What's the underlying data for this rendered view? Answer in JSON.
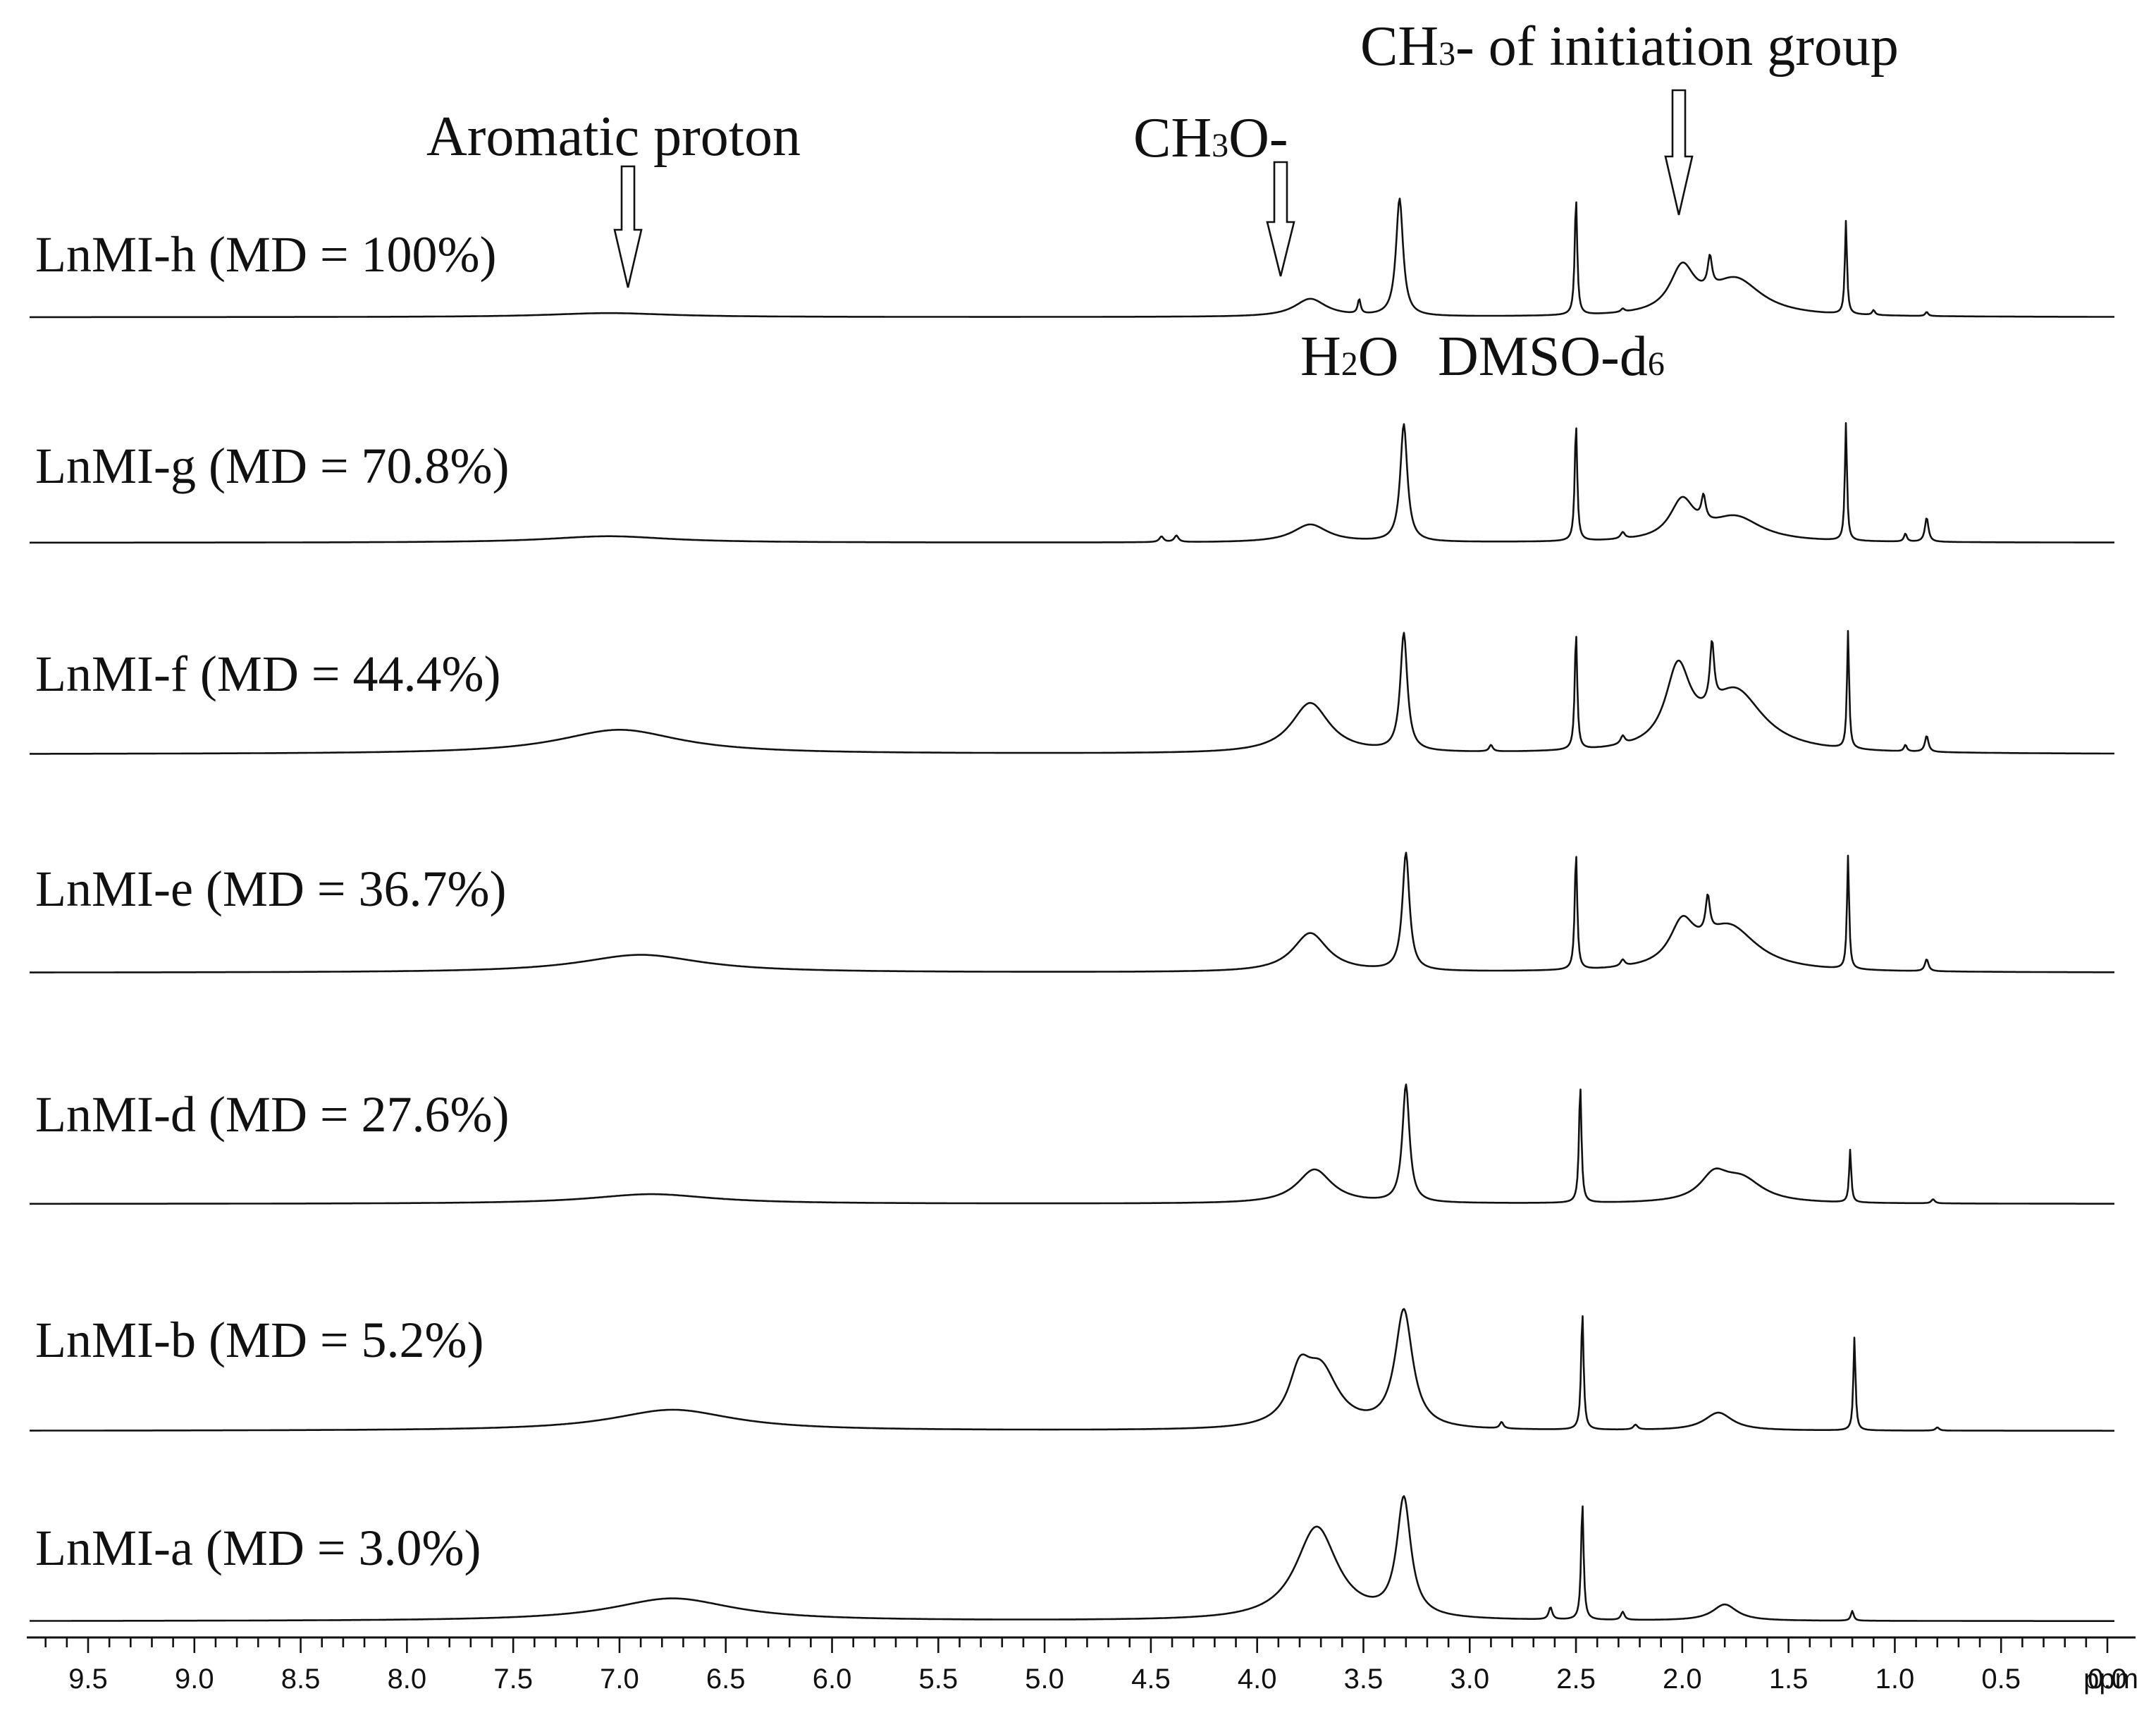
{
  "chart_data": {
    "type": "line",
    "title": "",
    "xlabel": "ppm",
    "ylabel": "",
    "xlim": [
      10.0,
      -0.5
    ],
    "x_direction": "reversed",
    "grid": false,
    "x_tick_labels": [
      "9.5",
      "9.0",
      "8.5",
      "8.0",
      "7.5",
      "7.0",
      "6.5",
      "6.0",
      "5.5",
      "5.0",
      "4.5",
      "4.0",
      "3.5",
      "3.0",
      "2.5",
      "2.0",
      "1.5",
      "1.0",
      "0.5",
      "0.0"
    ],
    "annotations": {
      "aromatic": {
        "text": "Aromatic proton",
        "ppm": 7.0
      },
      "methoxy": {
        "text_main": "CH",
        "text_sub": "3",
        "text_tail": "O-",
        "ppm": 3.75
      },
      "initiation": {
        "text_main": "CH",
        "text_sub": "3",
        "text_tail": "- of initiation group",
        "ppm": 1.75
      },
      "water": {
        "text_main": "H",
        "text_sub": "2",
        "text_tail": "O"
      },
      "dmso": {
        "text_main": "DMSO-d",
        "text_sub": "6"
      }
    },
    "series": [
      {
        "name": "LnMI-h (MD = 100%)",
        "peaks": [
          {
            "ppm": 7.05,
            "h": 0.05,
            "w": 0.35
          },
          {
            "ppm": 3.75,
            "h": 0.22,
            "w": 0.09
          },
          {
            "ppm": 3.52,
            "h": 0.18,
            "w": 0.008
          },
          {
            "ppm": 3.33,
            "h": 1.45,
            "w": 0.02
          },
          {
            "ppm": 2.5,
            "h": 1.45,
            "w": 0.007
          },
          {
            "ppm": 2.28,
            "h": 0.04,
            "w": 0.01
          },
          {
            "ppm": 2.0,
            "h": 0.55,
            "w": 0.07
          },
          {
            "ppm": 1.87,
            "h": 0.38,
            "w": 0.012
          },
          {
            "ppm": 1.75,
            "h": 0.45,
            "w": 0.15
          },
          {
            "ppm": 1.23,
            "h": 1.15,
            "w": 0.006
          },
          {
            "ppm": 1.1,
            "h": 0.06,
            "w": 0.008
          },
          {
            "ppm": 0.85,
            "h": 0.05,
            "w": 0.008
          }
        ]
      },
      {
        "name": "LnMI-g (MD = 70.8%)",
        "peaks": [
          {
            "ppm": 7.05,
            "h": 0.08,
            "w": 0.35
          },
          {
            "ppm": 4.45,
            "h": 0.07,
            "w": 0.012
          },
          {
            "ppm": 4.38,
            "h": 0.08,
            "w": 0.012
          },
          {
            "ppm": 3.75,
            "h": 0.22,
            "w": 0.1
          },
          {
            "ppm": 3.31,
            "h": 1.45,
            "w": 0.02
          },
          {
            "ppm": 2.5,
            "h": 1.45,
            "w": 0.007
          },
          {
            "ppm": 2.28,
            "h": 0.08,
            "w": 0.012
          },
          {
            "ppm": 2.0,
            "h": 0.48,
            "w": 0.07
          },
          {
            "ppm": 1.9,
            "h": 0.3,
            "w": 0.012
          },
          {
            "ppm": 1.75,
            "h": 0.3,
            "w": 0.15
          },
          {
            "ppm": 1.23,
            "h": 1.45,
            "w": 0.006
          },
          {
            "ppm": 0.85,
            "h": 0.3,
            "w": 0.01
          },
          {
            "ppm": 0.95,
            "h": 0.1,
            "w": 0.008
          }
        ]
      },
      {
        "name": "LnMI-f (MD = 44.4%)",
        "peaks": [
          {
            "ppm": 7.0,
            "h": 0.3,
            "w": 0.35
          },
          {
            "ppm": 3.75,
            "h": 0.62,
            "w": 0.11
          },
          {
            "ppm": 3.31,
            "h": 1.45,
            "w": 0.02
          },
          {
            "ppm": 2.9,
            "h": 0.08,
            "w": 0.01
          },
          {
            "ppm": 2.5,
            "h": 1.45,
            "w": 0.007
          },
          {
            "ppm": 2.28,
            "h": 0.1,
            "w": 0.012
          },
          {
            "ppm": 2.02,
            "h": 0.95,
            "w": 0.07
          },
          {
            "ppm": 1.86,
            "h": 0.75,
            "w": 0.012
          },
          {
            "ppm": 1.75,
            "h": 0.75,
            "w": 0.16
          },
          {
            "ppm": 1.22,
            "h": 1.45,
            "w": 0.006
          },
          {
            "ppm": 0.85,
            "h": 0.2,
            "w": 0.01
          },
          {
            "ppm": 0.95,
            "h": 0.08,
            "w": 0.008
          }
        ]
      },
      {
        "name": "LnMI-e (MD = 36.7%)",
        "peaks": [
          {
            "ppm": 6.9,
            "h": 0.22,
            "w": 0.35
          },
          {
            "ppm": 3.75,
            "h": 0.48,
            "w": 0.1
          },
          {
            "ppm": 3.3,
            "h": 1.45,
            "w": 0.02
          },
          {
            "ppm": 2.5,
            "h": 1.45,
            "w": 0.007
          },
          {
            "ppm": 2.28,
            "h": 0.08,
            "w": 0.012
          },
          {
            "ppm": 2.0,
            "h": 0.5,
            "w": 0.07
          },
          {
            "ppm": 1.88,
            "h": 0.45,
            "w": 0.012
          },
          {
            "ppm": 1.78,
            "h": 0.55,
            "w": 0.16
          },
          {
            "ppm": 1.22,
            "h": 1.4,
            "w": 0.006
          },
          {
            "ppm": 0.85,
            "h": 0.15,
            "w": 0.01
          }
        ]
      },
      {
        "name": "LnMI-d (MD = 27.6%)",
        "peaks": [
          {
            "ppm": 6.85,
            "h": 0.12,
            "w": 0.35
          },
          {
            "ppm": 3.73,
            "h": 0.42,
            "w": 0.1
          },
          {
            "ppm": 3.3,
            "h": 1.45,
            "w": 0.02
          },
          {
            "ppm": 2.48,
            "h": 1.45,
            "w": 0.007
          },
          {
            "ppm": 1.85,
            "h": 0.3,
            "w": 0.08
          },
          {
            "ppm": 1.72,
            "h": 0.28,
            "w": 0.12
          },
          {
            "ppm": 1.21,
            "h": 0.65,
            "w": 0.006
          },
          {
            "ppm": 0.82,
            "h": 0.05,
            "w": 0.01
          }
        ]
      },
      {
        "name": "LnMI-b (MD = 5.2%)",
        "peaks": [
          {
            "ppm": 6.75,
            "h": 0.26,
            "w": 0.35
          },
          {
            "ppm": 3.8,
            "h": 0.55,
            "w": 0.06
          },
          {
            "ppm": 3.7,
            "h": 0.7,
            "w": 0.1
          },
          {
            "ppm": 3.31,
            "h": 1.45,
            "w": 0.05
          },
          {
            "ppm": 2.85,
            "h": 0.08,
            "w": 0.01
          },
          {
            "ppm": 2.47,
            "h": 1.45,
            "w": 0.007
          },
          {
            "ppm": 2.22,
            "h": 0.06,
            "w": 0.012
          },
          {
            "ppm": 1.83,
            "h": 0.22,
            "w": 0.08
          },
          {
            "ppm": 1.19,
            "h": 1.15,
            "w": 0.006
          },
          {
            "ppm": 0.8,
            "h": 0.04,
            "w": 0.01
          }
        ]
      },
      {
        "name": "LnMI-a (MD = 3.0%)",
        "peaks": [
          {
            "ppm": 6.75,
            "h": 0.28,
            "w": 0.35
          },
          {
            "ppm": 3.72,
            "h": 1.15,
            "w": 0.12
          },
          {
            "ppm": 3.31,
            "h": 1.45,
            "w": 0.04
          },
          {
            "ppm": 2.62,
            "h": 0.15,
            "w": 0.01
          },
          {
            "ppm": 2.47,
            "h": 1.45,
            "w": 0.007
          },
          {
            "ppm": 2.28,
            "h": 0.1,
            "w": 0.01
          },
          {
            "ppm": 1.8,
            "h": 0.2,
            "w": 0.07
          },
          {
            "ppm": 1.2,
            "h": 0.12,
            "w": 0.008
          }
        ]
      }
    ]
  }
}
